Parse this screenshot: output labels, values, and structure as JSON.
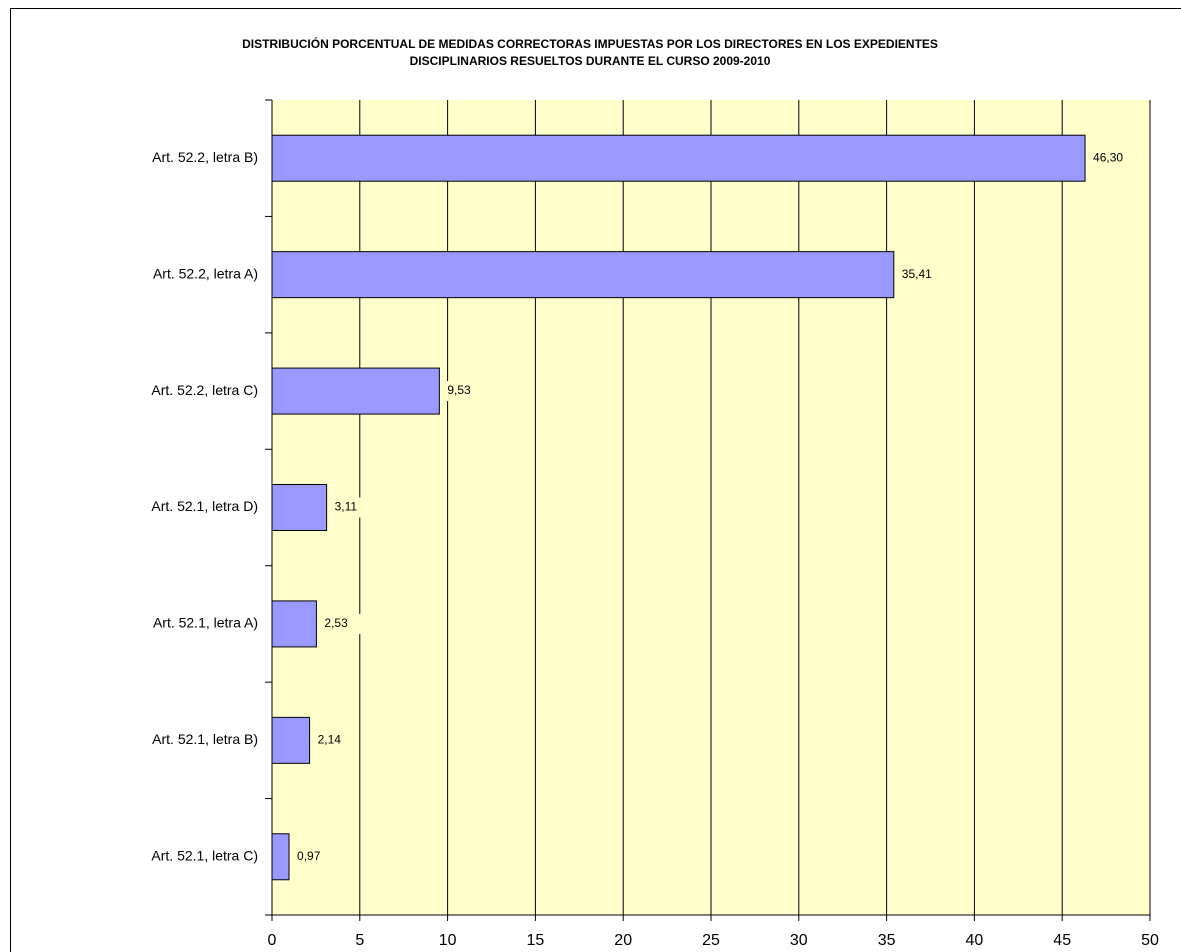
{
  "chart_data": {
    "type": "barh",
    "title": [
      "DISTRIBUCIÓN PORCENTUAL DE MEDIDAS CORRECTORAS IMPUESTAS POR LOS DIRECTORES EN LOS EXPEDIENTES",
      "DISCIPLINARIOS RESUELTOS DURANTE EL CURSO 2009-2010"
    ],
    "categories": [
      "Art. 52.2, letra B)",
      "Art. 52.2, letra A)",
      "Art. 52.2, letra C)",
      "Art. 52.1, letra D)",
      "Art. 52.1, letra A)",
      "Art. 52.1, letra B)",
      "Art. 52.1, letra C)"
    ],
    "values": [
      46.3,
      35.41,
      9.53,
      3.11,
      2.53,
      2.14,
      0.97
    ],
    "value_labels": [
      "46,30",
      "35,41",
      "9,53",
      "3,11",
      "2,53",
      "2,14",
      "0,97"
    ],
    "color": "#9999ff",
    "xlim": [
      0,
      50
    ],
    "xticks": [
      0,
      5,
      10,
      15,
      20,
      25,
      30,
      35,
      40,
      45,
      50
    ],
    "grid": true
  }
}
